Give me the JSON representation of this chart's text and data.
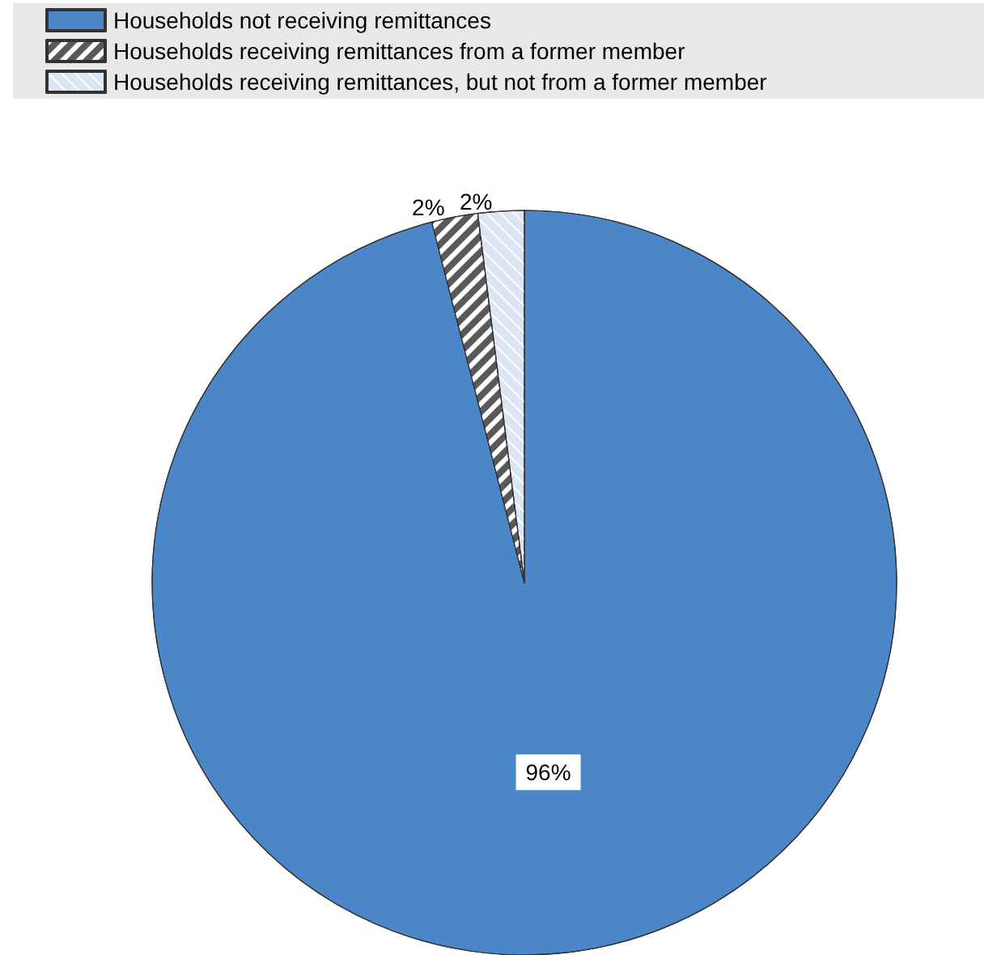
{
  "chart_data": {
    "type": "pie",
    "categories": [
      "Households not receiving remittances",
      "Households receiving remittances from a former member",
      "Households receiving remittances, but not from a former member"
    ],
    "values": [
      96,
      2,
      2
    ],
    "colors": [
      "#4a86c8",
      "#595959",
      "#dbe5f5"
    ],
    "value_labels": [
      "96%",
      "2%",
      "2%"
    ],
    "legend": "top left"
  }
}
